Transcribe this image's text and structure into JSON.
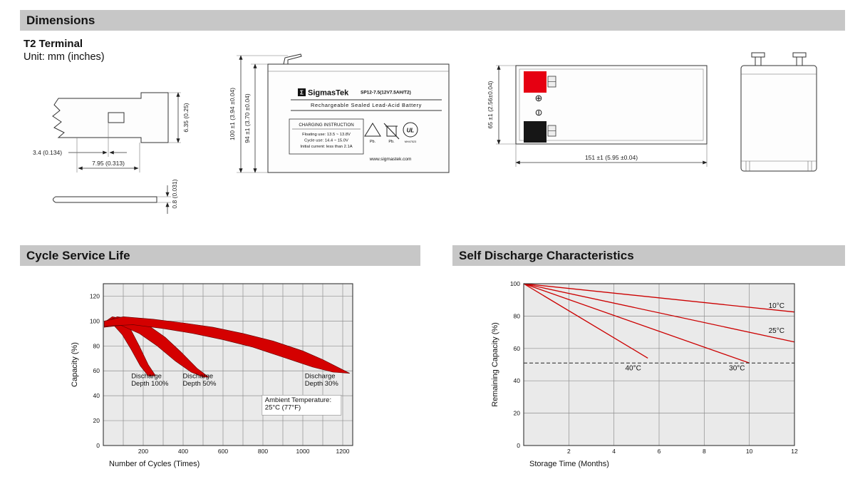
{
  "header": {
    "title": "Dimensions"
  },
  "terminal": {
    "title": "T2 Terminal",
    "unit": "Unit: mm (inches)",
    "dims": {
      "hole_offset": "3.4 (0.134)",
      "width": "7.95 (0.313)",
      "height": "6.35 (0.25)",
      "thickness": "0.8 (0.031)"
    }
  },
  "front_view": {
    "logo_sigma": "Σ",
    "brand": "SigmasTek",
    "model": "SP12-7.5(12V7.5AH/T2)",
    "subtitle": "Rechargeable Sealed Lead-Acid Battery",
    "charging": {
      "title": "CHARGING INSTRUCTION",
      "line1": "Floating use: 13.5 ~ 13.8V",
      "line2": "Cycle use: 14.4 ~ 15.0V",
      "line3": "Initial current: less than 2.1A"
    },
    "pb1": "Pb.",
    "pb2": "Pb.",
    "ul_label": "UL",
    "ul_code": "MH47523",
    "website": "www.sigmastek.com",
    "dim_outer": "100 ±1 (3.94 ±0.04)",
    "dim_inner": "94 ±1 (3.70 ±0.04)"
  },
  "side_view": {
    "positive_symbol": "⊕",
    "negative_symbol": "⊖",
    "dim_height": "65 ±1 (2.56±0.04)",
    "dim_length": "151 ±1 (5.95 ±0.04)"
  },
  "cycle_section": {
    "title": "Cycle Service Life"
  },
  "discharge_section": {
    "title": "Self Discharge Characteristics"
  },
  "chart_data": [
    {
      "type": "area",
      "title": "Cycle Service Life",
      "xlabel": "Number of Cycles (Times)",
      "ylabel": "Capacity (%)",
      "xlim": [
        0,
        1250
      ],
      "ylim": [
        0,
        130
      ],
      "xticks": [
        200,
        400,
        600,
        800,
        1000,
        1200
      ],
      "yticks": [
        0,
        20,
        40,
        60,
        80,
        100,
        120
      ],
      "grid_x_step": 100,
      "grid_y_step": 20,
      "grid": true,
      "legend_position": "none",
      "band_color": "#d40000",
      "bands": [
        {
          "name": "Discharge Depth 100%",
          "upper": [
            [
              5,
              99
            ],
            [
              45,
              103.5
            ],
            [
              90,
              102
            ],
            [
              135,
              94
            ],
            [
              180,
              80
            ],
            [
              225,
              65
            ],
            [
              262,
              56
            ]
          ],
          "lower": [
            [
              5,
              95
            ],
            [
              50,
              97
            ],
            [
              95,
              89
            ],
            [
              140,
              77
            ],
            [
              185,
              64
            ],
            [
              225,
              56
            ],
            [
              262,
              56
            ]
          ]
        },
        {
          "name": "Discharge Depth 50%",
          "upper": [
            [
              5,
              99
            ],
            [
              70,
              103.5
            ],
            [
              150,
              101.5
            ],
            [
              230,
              96
            ],
            [
              310,
              87
            ],
            [
              390,
              75
            ],
            [
              470,
              62
            ],
            [
              528,
              55
            ]
          ],
          "lower": [
            [
              5,
              95
            ],
            [
              90,
              96.5
            ],
            [
              180,
              90
            ],
            [
              270,
              80
            ],
            [
              360,
              68
            ],
            [
              440,
              59
            ],
            [
              500,
              55
            ],
            [
              528,
              55
            ]
          ]
        },
        {
          "name": "Discharge Depth 30%",
          "upper": [
            [
              5,
              100
            ],
            [
              100,
              103.5
            ],
            [
              250,
              101.5
            ],
            [
              400,
              98.5
            ],
            [
              550,
              95
            ],
            [
              700,
              90
            ],
            [
              850,
              84
            ],
            [
              1000,
              76
            ],
            [
              1100,
              69
            ],
            [
              1235,
              58
            ]
          ],
          "lower": [
            [
              5,
              96
            ],
            [
              150,
              97
            ],
            [
              300,
              94
            ],
            [
              450,
              90
            ],
            [
              600,
              85
            ],
            [
              750,
              79
            ],
            [
              900,
              71
            ],
            [
              1050,
              63
            ],
            [
              1150,
              59
            ],
            [
              1235,
              58
            ]
          ]
        }
      ],
      "annotations": [
        {
          "lines": [
            "Discharge",
            "Depth 100%"
          ],
          "x": 140,
          "y": 54
        },
        {
          "lines": [
            "Discharge",
            "Depth 50%"
          ],
          "x": 398,
          "y": 54
        },
        {
          "lines": [
            "Discharge",
            "Depth 30%"
          ],
          "x": 1010,
          "y": 54
        },
        {
          "lines": [
            "Ambient Temperature:",
            "25°C (77°F)"
          ],
          "x": 810,
          "y": 35,
          "box": true
        }
      ]
    },
    {
      "type": "line",
      "title": "Self Discharge Characteristics",
      "xlabel": "Storage Time (Months)",
      "ylabel": "Remaining Capacity (%)",
      "xlim": [
        0,
        12
      ],
      "ylim": [
        0,
        100
      ],
      "xticks": [
        2,
        4,
        6,
        8,
        10,
        12
      ],
      "yticks": [
        0,
        20,
        40,
        60,
        80,
        100
      ],
      "grid_x_step": 2,
      "grid_y_step": 20,
      "grid": true,
      "legend_position": "inline-labels",
      "line_color": "#cc0000",
      "series": [
        {
          "name": "10°C",
          "points": [
            [
              0,
              100
            ],
            [
              12,
              82.5
            ]
          ],
          "label_at": [
            10.85,
            85
          ]
        },
        {
          "name": "25°C",
          "points": [
            [
              0,
              100
            ],
            [
              12,
              64
            ]
          ],
          "label_at": [
            10.85,
            69.5
          ]
        },
        {
          "name": "40°C",
          "points": [
            [
              0,
              100
            ],
            [
              5.5,
              54
            ]
          ],
          "label_at": [
            4.5,
            46.5
          ]
        },
        {
          "name": "30°C",
          "points": [
            [
              0,
              100
            ],
            [
              10,
              51
            ]
          ],
          "label_at": [
            9.1,
            46.5
          ]
        }
      ],
      "dashed_lines": [
        {
          "y": 51
        }
      ]
    }
  ]
}
